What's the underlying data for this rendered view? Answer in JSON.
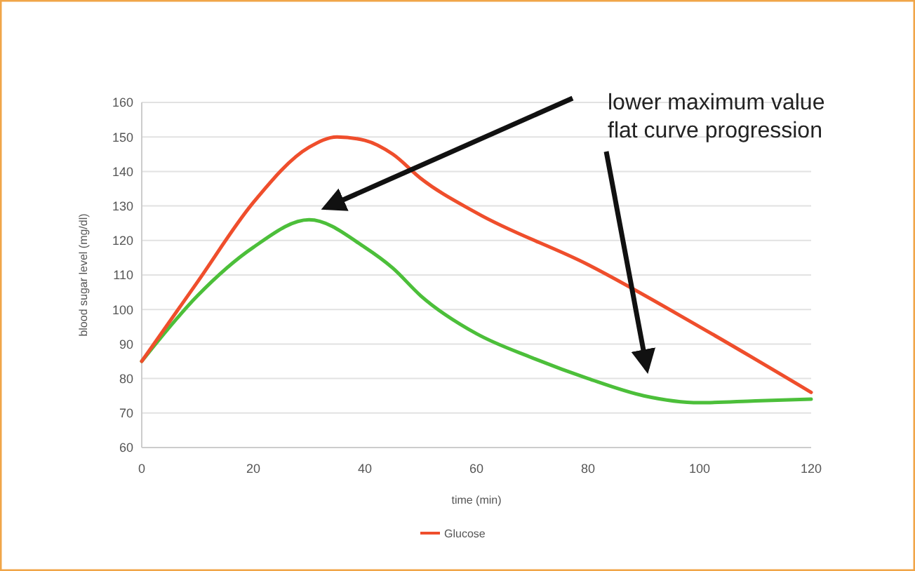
{
  "chart_data": {
    "type": "line",
    "xlabel": "time (min)",
    "ylabel": "blood sugar level (mg/dl)",
    "xlim": [
      0,
      120
    ],
    "xticks": [
      0,
      20,
      40,
      60,
      80,
      100,
      120
    ],
    "ylim": [
      60,
      160
    ],
    "yticks": [
      60,
      70,
      80,
      90,
      100,
      110,
      120,
      130,
      140,
      150,
      160
    ],
    "grid": "y",
    "legend": "bottom",
    "series": [
      {
        "color": "#4cbf3a",
        "x": [
          0,
          10,
          20,
          30,
          40,
          45,
          50,
          60,
          70,
          80,
          90,
          100,
          110,
          120
        ],
        "values": [
          85,
          104,
          118,
          126,
          118,
          112,
          104,
          93,
          86,
          80,
          75,
          73,
          73.5,
          74
        ]
      },
      {
        "name": "Glucose",
        "color": "#ef4e2c",
        "x": [
          0,
          10,
          20,
          30,
          35,
          40,
          45,
          50,
          60,
          80,
          100,
          120
        ],
        "values": [
          85,
          108,
          131,
          147,
          150,
          149,
          145,
          138,
          128,
          113,
          95,
          76
        ]
      }
    ],
    "annotations": [
      "lower maximum value",
      "flat curve progression"
    ]
  }
}
